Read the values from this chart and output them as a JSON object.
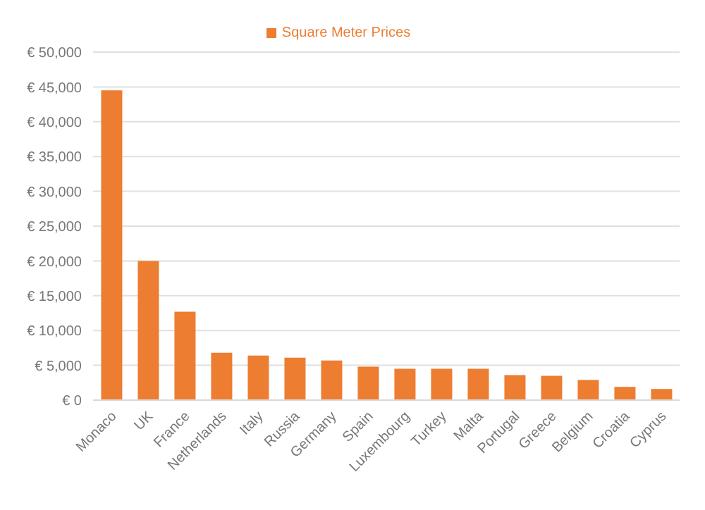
{
  "chart_data": {
    "type": "bar",
    "categories": [
      "Monaco",
      "UK",
      "France",
      "Netherlands",
      "Italy",
      "Russia",
      "Germany",
      "Spain",
      "Luxembourg",
      "Turkey",
      "Malta",
      "Portugal",
      "Greece",
      "Belgium",
      "Croatia",
      "Cyprus"
    ],
    "series": [
      {
        "name": "Square Meter Prices",
        "color": "#ed7d31",
        "values": [
          44500,
          20000,
          12700,
          6800,
          6400,
          6100,
          5700,
          4800,
          4500,
          4500,
          4500,
          3600,
          3500,
          2900,
          1900,
          1600
        ]
      }
    ],
    "ylim": [
      0,
      50000
    ],
    "yticks": [
      {
        "value": 0,
        "label": "€ 0"
      },
      {
        "value": 5000,
        "label": "€ 5,000"
      },
      {
        "value": 10000,
        "label": "€ 10,000"
      },
      {
        "value": 15000,
        "label": "€ 15,000"
      },
      {
        "value": 20000,
        "label": "€ 20,000"
      },
      {
        "value": 25000,
        "label": "€ 25,000"
      },
      {
        "value": 30000,
        "label": "€ 30,000"
      },
      {
        "value": 35000,
        "label": "€ 35,000"
      },
      {
        "value": 40000,
        "label": "€ 40,000"
      },
      {
        "value": 45000,
        "label": "€ 45,000"
      },
      {
        "value": 50000,
        "label": "€ 50,000"
      }
    ],
    "grid": "y",
    "legend": "top"
  }
}
